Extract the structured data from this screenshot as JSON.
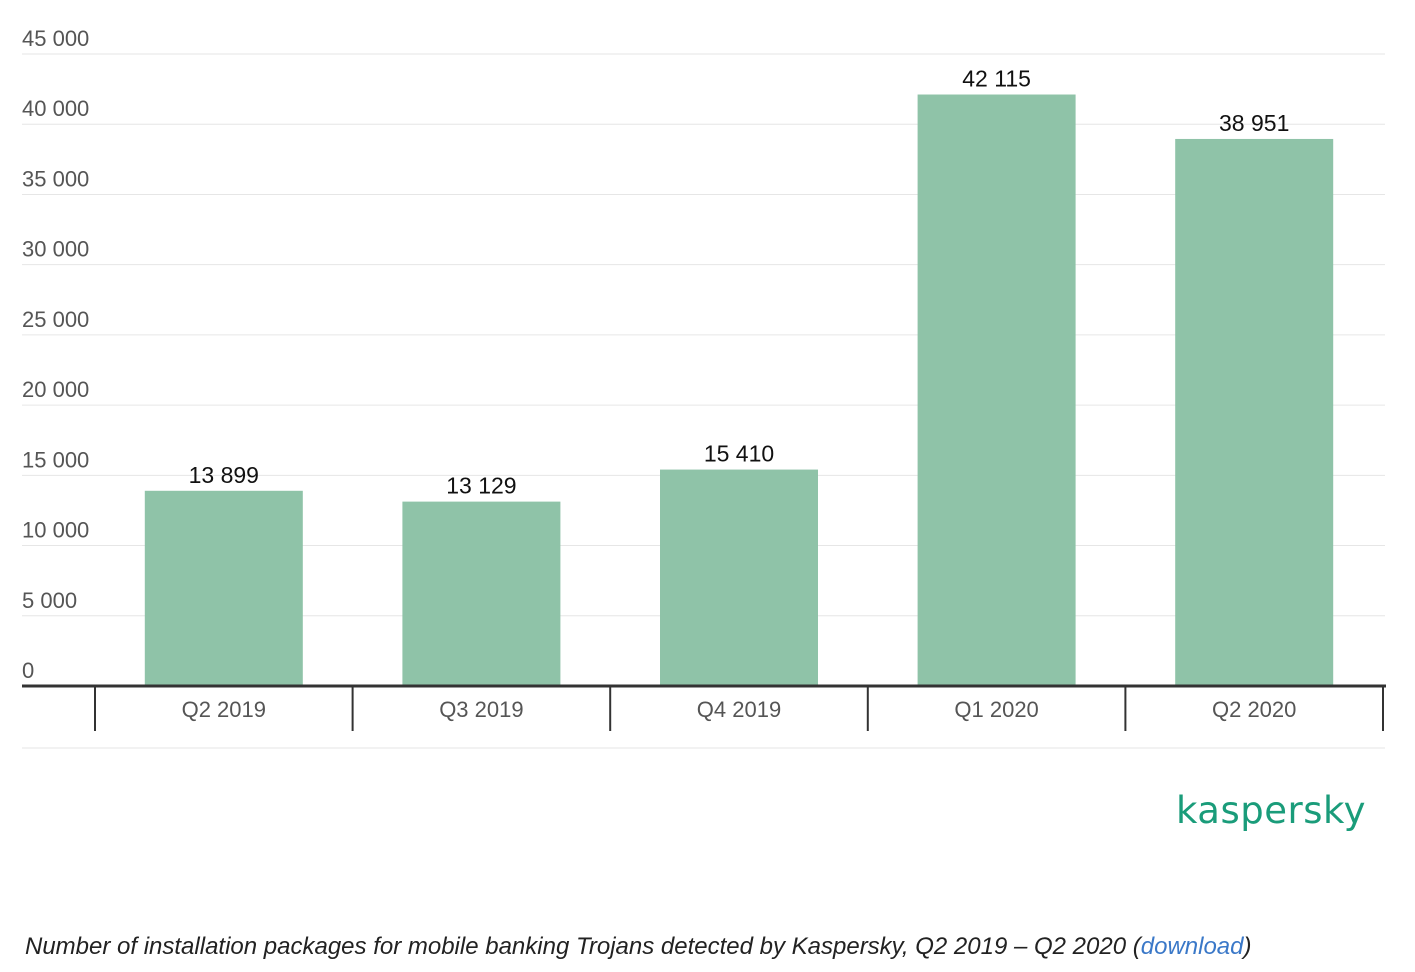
{
  "chart_data": {
    "type": "bar",
    "categories": [
      "Q2 2019",
      "Q3 2019",
      "Q4 2019",
      "Q1 2020",
      "Q2 2020"
    ],
    "values": [
      13899,
      13129,
      15410,
      42115,
      38951
    ],
    "value_labels": [
      "13 899",
      "13 129",
      "15 410",
      "42 115",
      "38 951"
    ],
    "yticks": [
      0,
      5000,
      10000,
      15000,
      20000,
      25000,
      30000,
      35000,
      40000,
      45000
    ],
    "ytick_labels": [
      "0",
      "5 000",
      "10 000",
      "15 000",
      "20 000",
      "25 000",
      "30 000",
      "35 000",
      "40 000",
      "45 000"
    ],
    "ylim": [
      0,
      45000
    ],
    "title": "",
    "xlabel": "",
    "ylabel": "",
    "grid": true,
    "legend": "none",
    "bar_color": "#8fc3a8"
  },
  "branding": {
    "logo_text": "kaspersky",
    "logo_color": "#1a9c7a"
  },
  "caption": {
    "text": "Number of installation packages for mobile banking Trojans detected by Kaspersky, Q2 2019 – Q2 2020",
    "open_paren": "(",
    "link_text": "download",
    "close_paren": ")",
    "link_color": "#3a78c8"
  }
}
